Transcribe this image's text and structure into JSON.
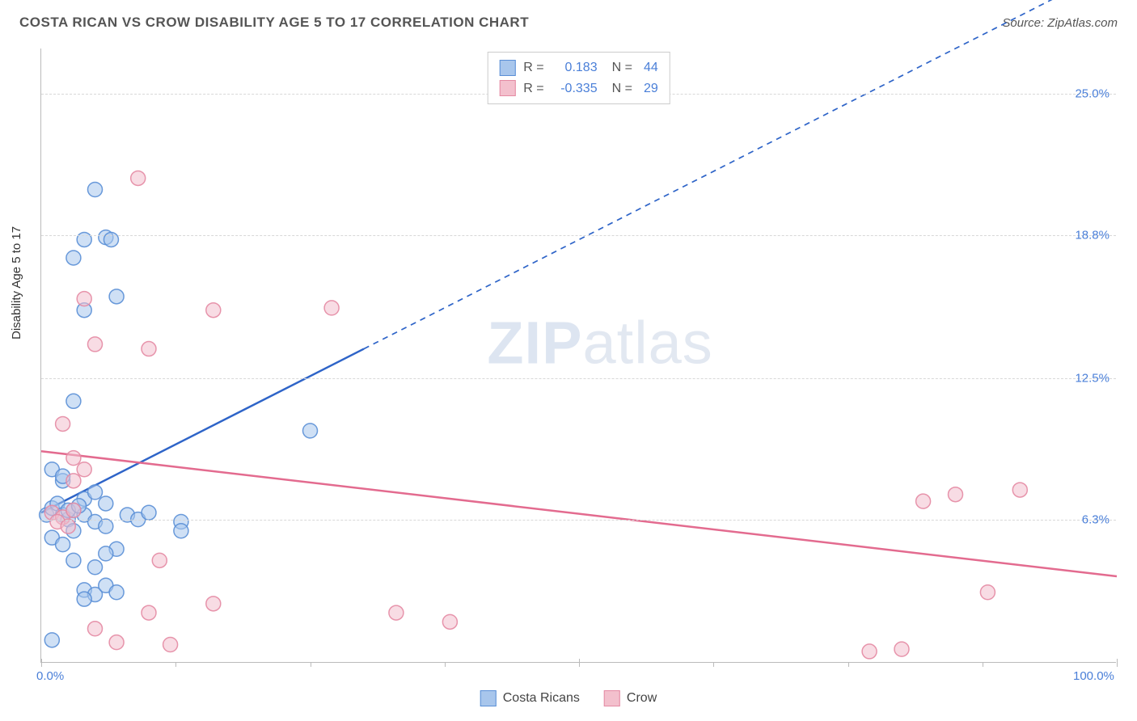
{
  "header": {
    "title": "COSTA RICAN VS CROW DISABILITY AGE 5 TO 17 CORRELATION CHART",
    "source_prefix": "Source: ",
    "source_name": "ZipAtlas.com"
  },
  "chart": {
    "type": "scatter",
    "ylabel": "Disability Age 5 to 17",
    "xlim": [
      0,
      100
    ],
    "ylim": [
      0,
      27
    ],
    "x_ticks": [
      0,
      50,
      100
    ],
    "x_tick_labels": [
      "0.0%",
      "",
      "100.0%"
    ],
    "x_minor_ticks": [
      12.5,
      25,
      37.5,
      62.5,
      75,
      87.5
    ],
    "y_ticks": [
      6.3,
      12.5,
      18.8,
      25.0
    ],
    "y_tick_labels": [
      "6.3%",
      "12.5%",
      "18.8%",
      "25.0%"
    ],
    "background_color": "#ffffff",
    "grid_color": "#d8d8d8",
    "axis_color": "#bbbbbb",
    "tick_label_color": "#4a7fd8",
    "marker_radius": 9,
    "marker_opacity": 0.55,
    "marker_stroke_width": 1.5,
    "series": [
      {
        "name": "Costa Ricans",
        "color_fill": "#a8c6ec",
        "color_stroke": "#5a8fd6",
        "R": 0.183,
        "N": 44,
        "trend": {
          "slope": 0.24,
          "intercept": 6.6,
          "solid_until_x": 30,
          "color": "#2e64c8",
          "width": 2.5
        },
        "points": [
          [
            0.5,
            6.5
          ],
          [
            1,
            6.8
          ],
          [
            1.5,
            7
          ],
          [
            2,
            6.5
          ],
          [
            2.5,
            6.3
          ],
          [
            3,
            6.7
          ],
          [
            1,
            5.5
          ],
          [
            2,
            5.2
          ],
          [
            3,
            5.8
          ],
          [
            4,
            6.5
          ],
          [
            5,
            6.2
          ],
          [
            6,
            6.0
          ],
          [
            4,
            7.2
          ],
          [
            5,
            7.5
          ],
          [
            6,
            7.0
          ],
          [
            8,
            6.5
          ],
          [
            9,
            6.3
          ],
          [
            10,
            6.6
          ],
          [
            4,
            3.2
          ],
          [
            5,
            3.0
          ],
          [
            6,
            3.4
          ],
          [
            4,
            2.8
          ],
          [
            7,
            3.1
          ],
          [
            3,
            4.5
          ],
          [
            5,
            4.2
          ],
          [
            7,
            5.0
          ],
          [
            6,
            4.8
          ],
          [
            3,
            11.5
          ],
          [
            2,
            8.0
          ],
          [
            1,
            8.5
          ],
          [
            2,
            8.2
          ],
          [
            3,
            17.8
          ],
          [
            4,
            18.6
          ],
          [
            6,
            18.7
          ],
          [
            6.5,
            18.6
          ],
          [
            7,
            16.1
          ],
          [
            5,
            20.8
          ],
          [
            4,
            15.5
          ],
          [
            1,
            1.0
          ],
          [
            13,
            6.2
          ],
          [
            13,
            5.8
          ],
          [
            25,
            10.2
          ],
          [
            2.5,
            6.7
          ],
          [
            3.5,
            6.9
          ]
        ]
      },
      {
        "name": "Crow",
        "color_fill": "#f3c0cd",
        "color_stroke": "#e48aa3",
        "R": -0.335,
        "N": 29,
        "trend": {
          "slope": -0.055,
          "intercept": 9.3,
          "solid_until_x": 100,
          "color": "#e36b8f",
          "width": 2.5
        },
        "points": [
          [
            1,
            6.6
          ],
          [
            2,
            6.4
          ],
          [
            3,
            6.7
          ],
          [
            1.5,
            6.2
          ],
          [
            2.5,
            6.0
          ],
          [
            3,
            8.0
          ],
          [
            4,
            8.5
          ],
          [
            2,
            10.5
          ],
          [
            3,
            9.0
          ],
          [
            5,
            14.0
          ],
          [
            4,
            16.0
          ],
          [
            10,
            13.8
          ],
          [
            9,
            21.3
          ],
          [
            16,
            15.5
          ],
          [
            27,
            15.6
          ],
          [
            11,
            4.5
          ],
          [
            10,
            2.2
          ],
          [
            12,
            0.8
          ],
          [
            16,
            2.6
          ],
          [
            33,
            2.2
          ],
          [
            38,
            1.8
          ],
          [
            80,
            0.6
          ],
          [
            77,
            0.5
          ],
          [
            82,
            7.1
          ],
          [
            85,
            7.4
          ],
          [
            88,
            3.1
          ],
          [
            91,
            7.6
          ],
          [
            5,
            1.5
          ],
          [
            7,
            0.9
          ]
        ]
      }
    ]
  },
  "legend": {
    "items": [
      {
        "label": "Costa Ricans",
        "color_fill": "#a8c6ec",
        "color_stroke": "#5a8fd6"
      },
      {
        "label": "Crow",
        "color_fill": "#f3c0cd",
        "color_stroke": "#e48aa3"
      }
    ]
  },
  "watermark": {
    "zip": "ZIP",
    "atlas": "atlas"
  }
}
